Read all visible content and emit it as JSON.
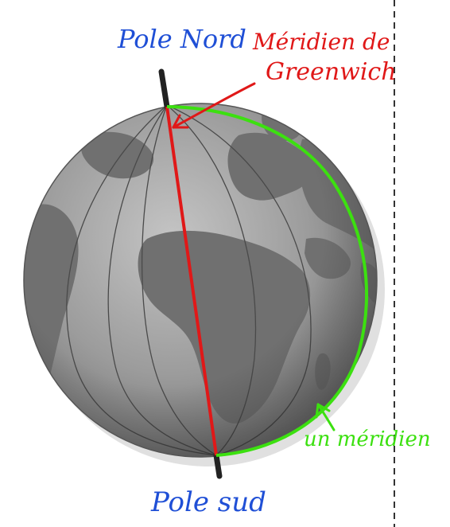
{
  "labels": {
    "north_pole": "Pole Nord",
    "greenwich_line1": "Méridien de",
    "greenwich_line2": "Greenwich",
    "meridian": "un méridien",
    "south_pole": "Pole sud"
  },
  "colors": {
    "north_pole": "#1f4fd6",
    "south_pole": "#1f4fd6",
    "greenwich": "#e01818",
    "meridian": "#3ce010",
    "axis": "#222222",
    "ocean": "#9a9a9a",
    "land": "#6e6e6e",
    "grid": "#4a4a4a",
    "dashed_line": "#333333"
  }
}
